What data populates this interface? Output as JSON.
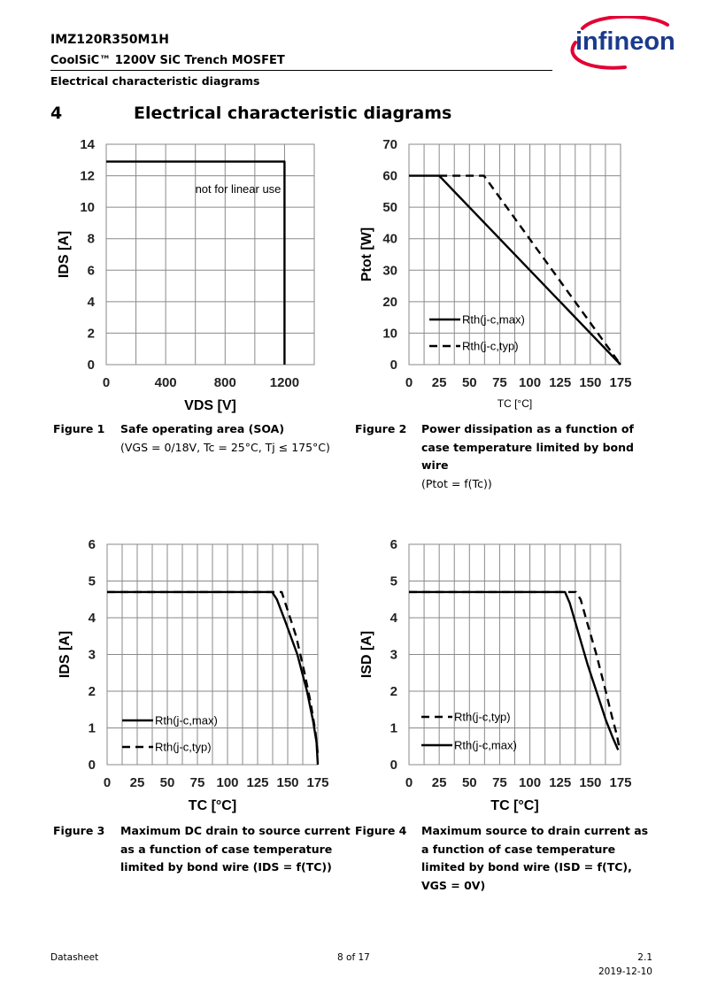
{
  "header": {
    "part_number": "IMZ120R350M1H",
    "series": "CoolSiC™ 1200V SiC Trench MOSFET",
    "section": "Electrical characteristic diagrams",
    "logo_text": "infineon",
    "logo_color": "#1a3a8c",
    "logo_arc_color": "#e30034"
  },
  "section": {
    "number": "4",
    "title": "Electrical characteristic diagrams"
  },
  "figures": [
    {
      "label": "Figure 1",
      "title": "Safe operating area (SOA)",
      "subtitle": "(VGS = 0/18V, Tc = 25°C, Tj ≤ 175°C)"
    },
    {
      "label": "Figure 2",
      "title": "Power dissipation as a function of case temperature limited by bond wire",
      "subtitle": "(Ptot = f(Tc))"
    },
    {
      "label": "Figure 3",
      "title": "Maximum DC drain to source current as a function of case temperature limited by bond wire (IDS = f(TC))",
      "subtitle": ""
    },
    {
      "label": "Figure 4",
      "title": "Maximum source to drain current as a function of case temperature limited by bond wire (ISD = f(TC),  VGS = 0V)",
      "subtitle": ""
    }
  ],
  "chart_data": [
    {
      "type": "line",
      "xlabel": "VDS [V]",
      "ylabel": "IDS [A]",
      "xlim": [
        0,
        1400
      ],
      "ylim": [
        0,
        14
      ],
      "x_ticks": [
        "0",
        "400",
        "800",
        "1200"
      ],
      "y_ticks": [
        "0",
        "2",
        "4",
        "6",
        "8",
        "10",
        "12",
        "14"
      ],
      "grid": true,
      "annotation": "not for linear use",
      "series": [
        {
          "name": "",
          "style": "solid",
          "points": [
            [
              0,
              12.9
            ],
            [
              1200,
              12.9
            ],
            [
              1200,
              0
            ]
          ]
        }
      ]
    },
    {
      "type": "line",
      "xlabel": "TC [°C]",
      "ylabel": "Ptot [W]",
      "xlim": [
        0,
        175
      ],
      "ylim": [
        0,
        70
      ],
      "x_ticks": [
        "0",
        "25",
        "50",
        "75",
        "100",
        "125",
        "150",
        "175"
      ],
      "y_ticks": [
        "0",
        "10",
        "20",
        "30",
        "40",
        "50",
        "60",
        "70"
      ],
      "grid": true,
      "legend_position": "bottom-left",
      "series": [
        {
          "name": "Rth(j-c,max)",
          "style": "solid",
          "points": [
            [
              0,
              60
            ],
            [
              25,
              60
            ],
            [
              175,
              0
            ]
          ]
        },
        {
          "name": "Rth(j-c,typ)",
          "style": "dashed",
          "points": [
            [
              25,
              60
            ],
            [
              62,
              60
            ],
            [
              175,
              0
            ]
          ]
        }
      ]
    },
    {
      "type": "line",
      "xlabel": "TC [°C]",
      "ylabel": "IDS [A]",
      "xlim": [
        0,
        175
      ],
      "ylim": [
        0,
        6
      ],
      "x_ticks": [
        "0",
        "25",
        "50",
        "75",
        "100",
        "125",
        "150",
        "175"
      ],
      "y_ticks": [
        "0",
        "1",
        "2",
        "3",
        "4",
        "5",
        "6"
      ],
      "grid": true,
      "legend_position": "bottom-left",
      "series": [
        {
          "name": "Rth(j-c,max)",
          "style": "solid",
          "points": [
            [
              0,
              4.7
            ],
            [
              137,
              4.7
            ],
            [
              141,
              4.5
            ],
            [
              148,
              3.9
            ],
            [
              158,
              3.0
            ],
            [
              166,
              2.0
            ],
            [
              171,
              1.2
            ],
            [
              174,
              0.6
            ],
            [
              175,
              0
            ]
          ]
        },
        {
          "name": "Rth(j-c,typ)",
          "style": "dashed",
          "points": [
            [
              0,
              4.7
            ],
            [
              145,
              4.7
            ],
            [
              150,
              4.2
            ],
            [
              157,
              3.5
            ],
            [
              164,
              2.5
            ],
            [
              169,
              1.7
            ],
            [
              173,
              0.9
            ],
            [
              175,
              0.3
            ]
          ]
        }
      ]
    },
    {
      "type": "line",
      "xlabel": "TC [°C]",
      "ylabel": "ISD [A]",
      "xlim": [
        0,
        175
      ],
      "ylim": [
        0,
        6
      ],
      "x_ticks": [
        "0",
        "25",
        "50",
        "75",
        "100",
        "125",
        "150",
        "175"
      ],
      "y_ticks": [
        "0",
        "1",
        "2",
        "3",
        "4",
        "5",
        "6"
      ],
      "grid": true,
      "legend_position": "bottom-left",
      "series": [
        {
          "name": "Rth(j-c,typ)",
          "style": "dashed",
          "points": [
            [
              0,
              4.7
            ],
            [
              138,
              4.7
            ],
            [
              142,
              4.5
            ],
            [
              148,
              3.8
            ],
            [
              155,
              3.0
            ],
            [
              162,
              2.1
            ],
            [
              168,
              1.3
            ],
            [
              172,
              0.8
            ],
            [
              174,
              0.45
            ]
          ]
        },
        {
          "name": "Rth(j-c,max)",
          "style": "solid",
          "points": [
            [
              0,
              4.7
            ],
            [
              129,
              4.7
            ],
            [
              133,
              4.4
            ],
            [
              140,
              3.6
            ],
            [
              148,
              2.7
            ],
            [
              156,
              1.9
            ],
            [
              163,
              1.2
            ],
            [
              169,
              0.7
            ],
            [
              173,
              0.4
            ]
          ]
        }
      ]
    }
  ],
  "footer": {
    "left": "Datasheet",
    "center": "8 of 17",
    "version": "2.1",
    "date": "2019-12-10"
  }
}
